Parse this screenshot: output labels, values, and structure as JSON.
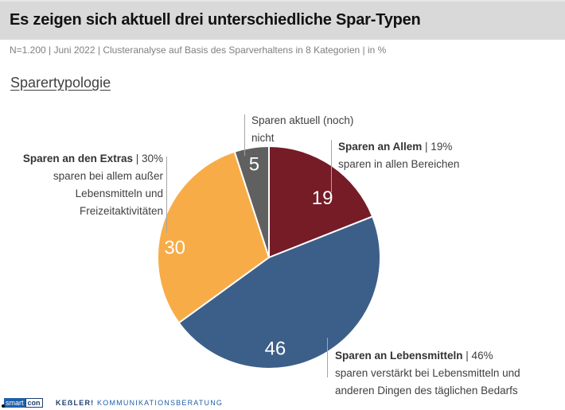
{
  "header": {
    "title": "Es zeigen sich aktuell drei unterschiedliche Spar-Typen",
    "subtitle": "N=1.200 | Juni 2022 | Clusteranalyse auf Basis des Sparverhaltens in 8 Kategorien | in %",
    "section": "Sparertypologie"
  },
  "chart_data": {
    "type": "pie",
    "title": "Sparertypologie",
    "unit": "%",
    "start": "12 o'clock, clockwise",
    "slices": [
      {
        "label": "Sparen an Allem",
        "value": 19,
        "color": "#751c27",
        "desc": "sparen in allen Bereichen"
      },
      {
        "label": "Sparen an Lebensmitteln",
        "value": 46,
        "color": "#3c5f89",
        "desc": "sparen verstärkt bei Lebensmitteln und anderen Dingen des täglichen Bedarfs"
      },
      {
        "label": "Sparen an den Extras",
        "value": 30,
        "color": "#f8ac47",
        "desc": "sparen bei allem außer Lebensmitteln und Freizeitaktivitäten"
      },
      {
        "label": "Sparen aktuell (noch) nicht",
        "value": 5,
        "color": "#606060",
        "desc": ""
      }
    ],
    "data_labels": [
      "19",
      "46",
      "30",
      "5"
    ]
  },
  "labels": {
    "allem": {
      "bold": "Sparen an Allem",
      "rest": " | 19%",
      "line2": "sparen in allen Bereichen"
    },
    "lebensmittel": {
      "bold": "Sparen an Lebensmitteln",
      "rest": " | 46%",
      "line2": "sparen verstärkt bei Lebensmitteln und",
      "line3": "anderen Dingen des täglichen Bedarfs"
    },
    "extras": {
      "bold": "Sparen an den Extras",
      "rest": " | 30%",
      "line2": "sparen bei allem außer",
      "line3": "Lebensmitteln und",
      "line4": "Freizeitaktivitäten"
    },
    "nicht": {
      "line1": "Sparen aktuell (noch)",
      "line2": "nicht"
    }
  },
  "footer": {
    "logo_smart": "smart",
    "logo_con": "con",
    "company_bold": "KEẞLER!",
    "company_rest": " KOMMUNIKATIONSBERATUNG"
  }
}
